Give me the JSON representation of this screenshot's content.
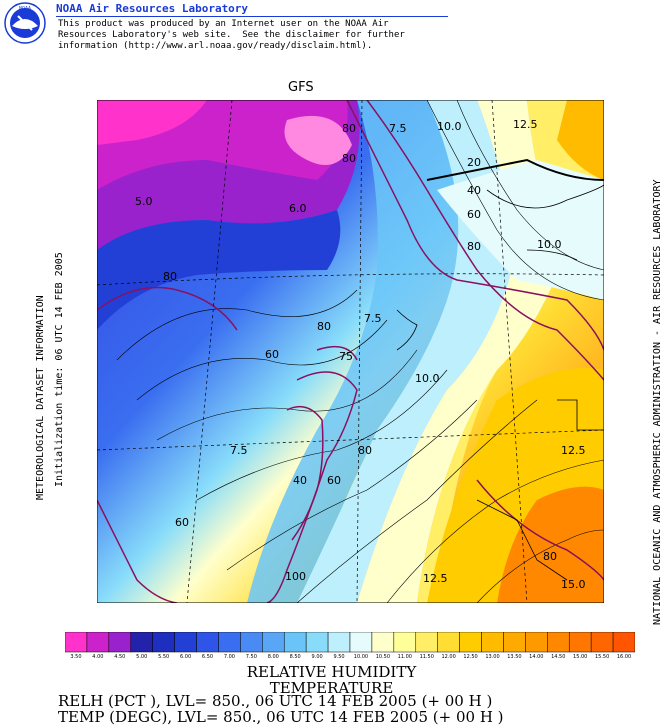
{
  "header": {
    "title": "NOAA Air Resources Laboratory",
    "lines": [
      "This product was produced by an Internet user on the NOAA Air",
      "Resources Laboratory's web site.  See the disclaimer for further",
      "information (http://www.arl.noaa.gov/ready/disclaim.html)."
    ],
    "logo_text": "NOAA"
  },
  "map": {
    "model": "GFS",
    "left_label": "METEOROLOGICAL DATASET INFORMATION",
    "init_time": "Initialization time: 06 UTC 14 FEB 2005",
    "right_label": "NATIONAL OCEANIC AND ATMOSPHERIC ADMINISTRATION - AIR RESOURCES LABORATORY",
    "contour_labels": [
      "80",
      "7.5",
      "10.0",
      "12.5",
      "80",
      "20",
      "40",
      "5.0",
      "6.0",
      "60",
      "80",
      "10.0",
      "80",
      "80",
      "7.5",
      "60",
      "75",
      "10.0",
      "7.5",
      "80",
      "12.5",
      "40",
      "60",
      "60",
      "100",
      "12.5",
      "80",
      "15.0"
    ]
  },
  "colorbar": {
    "labels": [
      "3.50",
      "4.00",
      "4.50",
      "5.00",
      "5.50",
      "6.00",
      "6.50",
      "7.00",
      "7.50",
      "8.00",
      "8.50",
      "9.00",
      "9.50",
      "10.00",
      "10.50",
      "11.00",
      "11.50",
      "12.00",
      "12.50",
      "13.00",
      "13.50",
      "14.00",
      "14.50",
      "15.00",
      "15.50",
      "16.00"
    ],
    "colors": [
      "#ff33cc",
      "#cc22cc",
      "#9922cc",
      "#2222aa",
      "#1e2fc0",
      "#2240d6",
      "#2e55e8",
      "#3a6ef0",
      "#4a8af4",
      "#5aa6f6",
      "#6ac4f8",
      "#88dcfa",
      "#bdeffc",
      "#e6fbfc",
      "#ffffcc",
      "#ffff99",
      "#ffee66",
      "#ffdd33",
      "#ffcc00",
      "#ffbb00",
      "#ffaa00",
      "#ff9900",
      "#ff8800",
      "#ff7700",
      "#ff6600",
      "#ff5500"
    ]
  },
  "footer": {
    "variable1": "RELATIVE HUMIDITY",
    "variable2": "TEMPERATURE",
    "relh_line": "RELH (PCT ),  LVL= 850., 06 UTC 14 FEB 2005 (+ 00 H )",
    "temp_line": "TEMP (DEGC),  LVL= 850., 06 UTC 14 FEB 2005 (+ 00 H )"
  }
}
